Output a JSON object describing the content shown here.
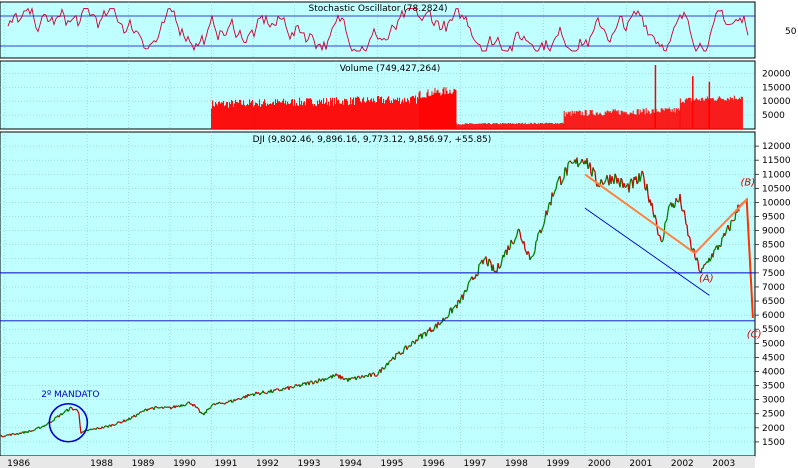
{
  "chart_data": [
    {
      "type": "line",
      "panel": "stochastic",
      "title": "Stochastic Oscillator (78.2824)",
      "ylim": [
        0,
        100
      ],
      "y_ticks": [
        50
      ],
      "reference_lines": [
        80,
        20
      ],
      "value_range": [
        10,
        95
      ]
    },
    {
      "type": "bar",
      "panel": "volume",
      "title": "Volume (749,427,264)",
      "ylim": [
        0,
        23000
      ],
      "y_ticks": [
        5000,
        10000,
        15000,
        20000
      ],
      "y_tick_labels": [
        "5000",
        "10000",
        "15000",
        "20000"
      ],
      "segments": [
        {
          "x_start": 1991.0,
          "x_end": 1996.0,
          "low": 5500,
          "high": 13000
        },
        {
          "x_start": 1996.0,
          "x_end": 1996.9,
          "low": 9000,
          "high": 16500
        },
        {
          "x_start": 1996.9,
          "x_end": 1999.5,
          "low": 1200,
          "high": 2500
        },
        {
          "x_start": 1999.5,
          "x_end": 2002.3,
          "low": 3000,
          "high": 8500
        },
        {
          "x_start": 2002.3,
          "x_end": 2003.8,
          "low": 8000,
          "high": 13000
        }
      ],
      "spikes": [
        [
          2001.7,
          23000
        ],
        [
          2002.6,
          19000
        ],
        [
          2003.0,
          17000
        ]
      ]
    },
    {
      "type": "line",
      "panel": "price",
      "title": "DJI (9,802.46, 9,896.16, 9,773.12, 9,856.97, +55.85)",
      "ylim": [
        1000,
        12500
      ],
      "y_ticks": [
        1500,
        2000,
        2500,
        3000,
        3500,
        4000,
        4500,
        5000,
        5500,
        6000,
        6500,
        7000,
        7500,
        8000,
        8500,
        9000,
        9500,
        10000,
        10500,
        11000,
        11500,
        12000
      ],
      "x_range": [
        1985.9,
        2004.1
      ],
      "x_ticks": [
        1986,
        1988,
        1989,
        1990,
        1991,
        1992,
        1993,
        1994,
        1995,
        1996,
        1997,
        1998,
        1999,
        2000,
        2001,
        2002,
        2003
      ],
      "x_tick_labels": [
        "1986",
        "1988",
        "1989",
        "1990",
        "1991",
        "1992",
        "1993",
        "1994",
        "1995",
        "1996",
        "1997",
        "1998",
        "1999",
        "2000",
        "2001",
        "2002",
        "2003"
      ],
      "series": [
        {
          "x": [
            1985.9,
            1986.3,
            1986.7,
            1987.0,
            1987.3,
            1987.6,
            1987.8,
            1987.85,
            1988.0,
            1988.5,
            1989.0,
            1989.5,
            1990.0,
            1990.5,
            1990.8,
            1991.0,
            1991.5,
            1992.0,
            1992.5,
            1993.0,
            1993.5,
            1994.0,
            1994.3,
            1994.6,
            1995.0,
            1995.3,
            1995.6,
            1996.0,
            1996.5,
            1997.0,
            1997.3,
            1997.6,
            1997.85,
            1998.0,
            1998.4,
            1998.7,
            1999.0,
            1999.3,
            1999.6,
            2000.0,
            2000.3,
            2000.7,
            2001.0,
            2001.4,
            2001.7,
            2001.85,
            2002.0,
            2002.3,
            2002.55,
            2002.8,
            2003.0,
            2003.3,
            2003.55,
            2003.72
          ],
          "y": [
            1700,
            1790,
            1900,
            2100,
            2400,
            2700,
            2600,
            1800,
            1900,
            2050,
            2300,
            2700,
            2700,
            2900,
            2450,
            2800,
            2950,
            3200,
            3300,
            3450,
            3650,
            3850,
            3700,
            3800,
            3900,
            4400,
            4700,
            5200,
            5700,
            6500,
            7300,
            8000,
            7500,
            8000,
            9000,
            8000,
            9300,
            10600,
            11200,
            11600,
            10700,
            10900,
            10500,
            10900,
            9500,
            8400,
            9800,
            10100,
            8500,
            7500,
            8000,
            8600,
            9300,
            9857
          ]
        }
      ],
      "projection": {
        "x": [
          2003.72,
          2003.9,
          2004.05
        ],
        "y": [
          9857,
          10100,
          5900
        ]
      },
      "horizontal_lines": [
        7500,
        5800
      ],
      "trendlines": [
        {
          "color": "orange",
          "x": [
            2000.0,
            2002.65
          ],
          "y": [
            11000,
            8200
          ]
        },
        {
          "color": "orange",
          "x": [
            2002.65,
            2003.9
          ],
          "y": [
            8200,
            10100
          ]
        },
        {
          "color": "blue",
          "x": [
            2000.0,
            2003.0
          ],
          "y": [
            9800,
            6700
          ]
        }
      ],
      "wave_labels": [
        {
          "text": "(A)",
          "x": 2002.75,
          "y": 7200
        },
        {
          "text": "(B)",
          "x": 2003.75,
          "y": 10600
        },
        {
          "text": "(C)",
          "x": 2003.9,
          "y": 5200
        }
      ],
      "circle_annotation": {
        "text": "2º MANDATO",
        "x": 1987.5,
        "y": 2180
      }
    }
  ]
}
